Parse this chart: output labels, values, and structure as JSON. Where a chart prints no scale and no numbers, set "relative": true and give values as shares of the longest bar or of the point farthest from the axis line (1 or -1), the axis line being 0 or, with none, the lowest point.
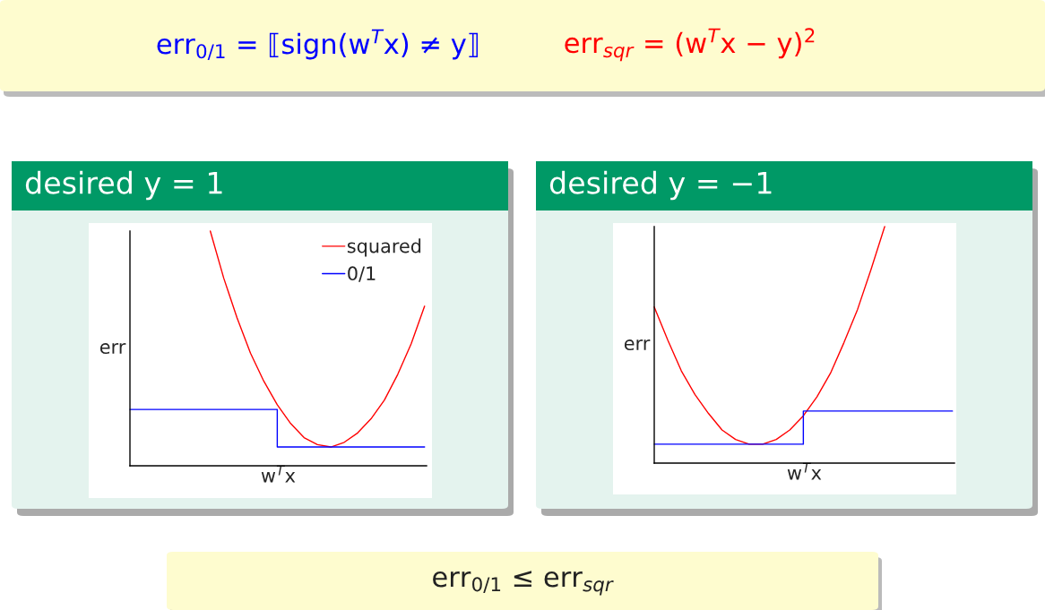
{
  "chart_data": [
    {
      "type": "other",
      "annotations": [
        "err$_{0/1}$ = ⟦sign(w$^{T}$x) ≠ y⟧",
        "err$_{sqr}$ = (w$^{T}$x − y)$^{2}$"
      ]
    },
    {
      "type": "line",
      "title": "desired y = 1",
      "xlabel": "w$^{T}$x",
      "ylabel": "err",
      "relative": true,
      "tick_labels": false,
      "legend": "top right",
      "categories": [
        null,
        null,
        null,
        null,
        null,
        null,
        null,
        null,
        null,
        null,
        null,
        null,
        null,
        null,
        null,
        null,
        null,
        null,
        null,
        null,
        null,
        null,
        null
      ],
      "series": [
        {
          "name": "squared",
          "color": "#ff0000",
          "values": [
            null,
            null,
            null,
            null,
            null,
            null,
            1.0,
            0.8,
            0.63,
            0.48,
            0.36,
            0.26,
            0.18,
            0.12,
            0.09,
            0.08,
            0.1,
            0.14,
            0.2,
            0.28,
            0.39,
            0.52,
            0.68
          ]
        },
        {
          "name": "0/1",
          "type": "step",
          "color": "#0000ff",
          "values": [
            0.24,
            0.24,
            0.24,
            0.24,
            0.24,
            0.24,
            0.24,
            0.24,
            0.24,
            0.24,
            0.24,
            0.08,
            0.08,
            0.08,
            0.08,
            0.08,
            0.08,
            0.08,
            0.08,
            0.08,
            0.08,
            0.08,
            0.08
          ]
        }
      ]
    },
    {
      "type": "line",
      "title": "desired y = −1",
      "xlabel": "w$^{T}$x",
      "ylabel": "err",
      "relative": true,
      "tick_labels": false,
      "categories": [
        null,
        null,
        null,
        null,
        null,
        null,
        null,
        null,
        null,
        null,
        null,
        null,
        null,
        null,
        null,
        null,
        null,
        null,
        null,
        null,
        null,
        null,
        null
      ],
      "series": [
        {
          "color": "#ff0000",
          "values": [
            0.66,
            0.52,
            0.39,
            0.29,
            0.21,
            0.14,
            0.1,
            0.08,
            0.08,
            0.1,
            0.14,
            0.2,
            0.28,
            0.38,
            0.51,
            0.65,
            0.82,
            1.0,
            null,
            null,
            null,
            null,
            null
          ]
        },
        {
          "type": "step",
          "color": "#0000ff",
          "values": [
            0.08,
            0.08,
            0.08,
            0.08,
            0.08,
            0.08,
            0.08,
            0.08,
            0.08,
            0.08,
            0.08,
            0.22,
            0.22,
            0.22,
            0.22,
            0.22,
            0.22,
            0.22,
            0.22,
            0.22,
            0.22,
            0.22,
            0.22
          ]
        }
      ]
    },
    {
      "type": "other",
      "annotations": [
        "err$_{0/1}$ ≤ err$_{sqr}$"
      ]
    }
  ]
}
